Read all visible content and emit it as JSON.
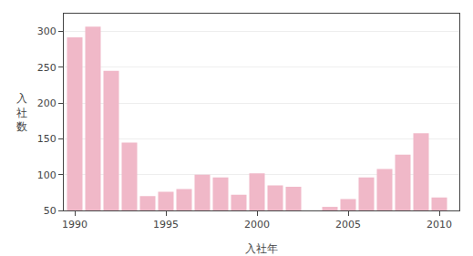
{
  "chart_data": {
    "type": "bar",
    "x": [
      1990,
      1991,
      1992,
      1993,
      1994,
      1995,
      1996,
      1997,
      1998,
      1999,
      2000,
      2001,
      2002,
      2004,
      2005,
      2006,
      2007,
      2008,
      2009,
      2010
    ],
    "values": [
      292,
      307,
      245,
      145,
      70,
      76,
      80,
      100,
      96,
      72,
      102,
      85,
      83,
      55,
      66,
      96,
      108,
      128,
      158,
      68
    ],
    "color": "#f0b8c8",
    "xlabel": "入社年",
    "ylabel": "入\n社\n数",
    "xlim": [
      1989.4,
      2011.1
    ],
    "xticks": [
      1990,
      1995,
      2000,
      2005,
      2010
    ],
    "ylim": [
      50,
      325
    ],
    "yticks": [
      50,
      100,
      150,
      200,
      250,
      300
    ],
    "grid": true
  }
}
